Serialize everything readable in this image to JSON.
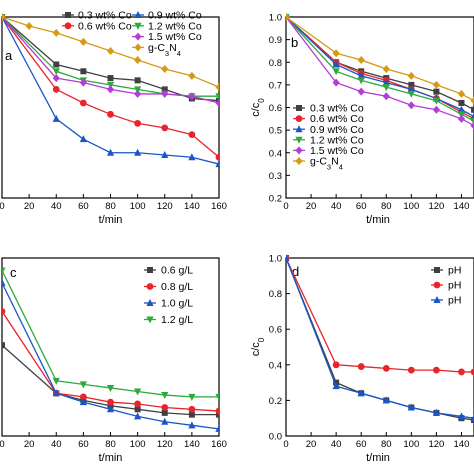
{
  "chart_data": [
    {
      "panel": "a",
      "type": "line",
      "xlabel": "t/min",
      "ylabel": "",
      "x": [
        0,
        20,
        40,
        60,
        80,
        100,
        120,
        140,
        160
      ],
      "x_ticks": [
        "0",
        "20",
        "40",
        "60",
        "80",
        "100",
        "120",
        "140",
        "160"
      ],
      "xlim": [
        0,
        160
      ],
      "ylim": [
        0.2,
        1.0
      ],
      "y_ticks": [],
      "legend_position": "top",
      "series": [
        {
          "name": "0.3 wt% Co",
          "color": "#404040",
          "marker": "square",
          "x": [
            0,
            40,
            60,
            80,
            100,
            120,
            140,
            160
          ],
          "values": [
            1.0,
            0.79,
            0.76,
            0.73,
            0.72,
            0.68,
            0.64,
            0.63
          ]
        },
        {
          "name": "0.6 wt% Co",
          "color": "#e8242c",
          "marker": "circle",
          "x": [
            0,
            40,
            60,
            80,
            100,
            120,
            140,
            160
          ],
          "values": [
            1.0,
            0.68,
            0.62,
            0.57,
            0.53,
            0.51,
            0.48,
            0.38
          ]
        },
        {
          "name": "0.9 wt% Co",
          "color": "#1a56c8",
          "marker": "triangle",
          "x": [
            0,
            40,
            60,
            80,
            100,
            120,
            140,
            160
          ],
          "values": [
            1.0,
            0.55,
            0.46,
            0.4,
            0.4,
            0.39,
            0.38,
            0.35
          ]
        },
        {
          "name": "1.2 wt% Co",
          "color": "#2daa3c",
          "marker": "triangle-down",
          "x": [
            0,
            40,
            60,
            80,
            100,
            120,
            140,
            160
          ],
          "values": [
            1.0,
            0.76,
            0.72,
            0.7,
            0.68,
            0.66,
            0.65,
            0.65
          ]
        },
        {
          "name": "1.5 wt% Co",
          "color": "#b43cd7",
          "marker": "diamond",
          "x": [
            0,
            40,
            60,
            80,
            100,
            120,
            140,
            160
          ],
          "values": [
            1.0,
            0.73,
            0.71,
            0.68,
            0.66,
            0.66,
            0.65,
            0.62
          ]
        },
        {
          "name": "g-C3N4",
          "name_parts": [
            "g-C",
            "3",
            "N",
            "4"
          ],
          "color": "#d49a12",
          "marker": "diamond",
          "x": [
            0,
            20,
            40,
            60,
            80,
            100,
            120,
            140,
            160
          ],
          "values": [
            1.0,
            0.96,
            0.93,
            0.89,
            0.85,
            0.81,
            0.77,
            0.74,
            0.69
          ]
        }
      ]
    },
    {
      "panel": "b",
      "type": "line",
      "xlabel": "t/min",
      "ylabel_parts": [
        "c/c",
        "0"
      ],
      "x": [
        0,
        20,
        40,
        60,
        80,
        100,
        120,
        140
      ],
      "x_ticks": [
        "0",
        "20",
        "40",
        "60",
        "80",
        "100",
        "120",
        "140"
      ],
      "xlim": [
        0,
        150
      ],
      "ylim": [
        0.2,
        1.0
      ],
      "y_ticks": [
        "0.2",
        "0.3",
        "0.4",
        "0.5",
        "0.6",
        "0.7",
        "0.8",
        "0.9",
        "1.0"
      ],
      "legend_position": "bottom-left",
      "series": [
        {
          "name": "0.3 wt% Co",
          "color": "#404040",
          "marker": "square",
          "x": [
            0,
            40,
            60,
            80,
            100,
            120,
            140,
            150
          ],
          "values": [
            1.0,
            0.8,
            0.76,
            0.73,
            0.7,
            0.67,
            0.62,
            0.59
          ]
        },
        {
          "name": "0.6 wt% Co",
          "color": "#e8242c",
          "marker": "circle",
          "x": [
            0,
            40,
            60,
            80,
            100,
            120,
            140,
            150
          ],
          "values": [
            1.0,
            0.8,
            0.75,
            0.72,
            0.68,
            0.64,
            0.58,
            0.55
          ]
        },
        {
          "name": "0.9 wt% Co",
          "color": "#1a56c8",
          "marker": "triangle",
          "x": [
            0,
            40,
            60,
            80,
            100,
            120,
            140,
            150
          ],
          "values": [
            1.0,
            0.79,
            0.74,
            0.71,
            0.68,
            0.64,
            0.59,
            0.56
          ]
        },
        {
          "name": "1.2 wt% Co",
          "color": "#2daa3c",
          "marker": "triangle-down",
          "x": [
            0,
            40,
            60,
            80,
            100,
            120,
            140,
            150
          ],
          "values": [
            1.0,
            0.76,
            0.72,
            0.69,
            0.66,
            0.63,
            0.57,
            0.54
          ]
        },
        {
          "name": "1.5 wt% Co",
          "color": "#b43cd7",
          "marker": "diamond",
          "x": [
            0,
            40,
            60,
            80,
            100,
            120,
            140,
            150
          ],
          "values": [
            1.0,
            0.71,
            0.67,
            0.65,
            0.61,
            0.59,
            0.55,
            0.52
          ]
        },
        {
          "name": "g-C3N4",
          "name_parts": [
            "g-C",
            "3",
            "N",
            "4"
          ],
          "color": "#d49a12",
          "marker": "diamond",
          "x": [
            0,
            40,
            60,
            80,
            100,
            120,
            140,
            150
          ],
          "values": [
            1.0,
            0.84,
            0.81,
            0.77,
            0.74,
            0.7,
            0.66,
            0.63
          ]
        }
      ]
    },
    {
      "panel": "c",
      "type": "line",
      "xlabel": "t/min",
      "ylabel": "",
      "x": [
        0,
        20,
        40,
        60,
        80,
        100,
        120,
        140,
        160
      ],
      "x_ticks": [
        "0",
        "20",
        "40",
        "60",
        "80",
        "100",
        "120",
        "140",
        "160"
      ],
      "xlim": [
        0,
        160
      ],
      "ylim": [
        0.0,
        1.0
      ],
      "y_ticks": [],
      "legend_position": "top-right",
      "series": [
        {
          "name": "0.6 g/L",
          "color": "#404040",
          "marker": "square",
          "x": [
            0,
            40,
            60,
            80,
            100,
            120,
            140,
            160
          ],
          "values": [
            0.51,
            0.24,
            0.2,
            0.17,
            0.15,
            0.13,
            0.12,
            0.12
          ]
        },
        {
          "name": "0.8 g/L",
          "color": "#e8242c",
          "marker": "circle",
          "x": [
            0,
            40,
            60,
            80,
            100,
            120,
            140,
            160
          ],
          "values": [
            0.7,
            0.24,
            0.22,
            0.19,
            0.18,
            0.16,
            0.15,
            0.14
          ]
        },
        {
          "name": "1.0 g/L",
          "color": "#1a56c8",
          "marker": "triangle",
          "x": [
            0,
            40,
            60,
            80,
            100,
            120,
            140,
            160
          ],
          "values": [
            0.86,
            0.24,
            0.19,
            0.15,
            0.11,
            0.08,
            0.06,
            0.04
          ]
        },
        {
          "name": "1.2 g/L",
          "color": "#2daa3c",
          "marker": "triangle-down",
          "x": [
            0,
            40,
            60,
            80,
            100,
            120,
            140,
            160
          ],
          "values": [
            0.93,
            0.31,
            0.29,
            0.27,
            0.25,
            0.23,
            0.22,
            0.22
          ]
        }
      ]
    },
    {
      "panel": "d",
      "type": "line",
      "xlabel": "t/min",
      "ylabel_parts": [
        "c/c",
        "0"
      ],
      "x": [
        0,
        20,
        40,
        60,
        80,
        100,
        120,
        140
      ],
      "x_ticks": [
        "0",
        "20",
        "40",
        "60",
        "80",
        "100",
        "120",
        "140"
      ],
      "xlim": [
        0,
        150
      ],
      "ylim": [
        0.0,
        1.0
      ],
      "y_ticks": [
        "0.0",
        "0.2",
        "0.4",
        "0.6",
        "0.8",
        "1.0"
      ],
      "legend_position": "top-right",
      "series": [
        {
          "name": "pH",
          "color": "#404040",
          "marker": "square",
          "x": [
            0,
            40,
            60,
            80,
            100,
            120,
            140,
            150
          ],
          "values": [
            1.0,
            0.3,
            0.24,
            0.2,
            0.16,
            0.13,
            0.1,
            0.09
          ]
        },
        {
          "name": "pH",
          "color": "#e8242c",
          "marker": "circle",
          "x": [
            0,
            40,
            60,
            80,
            100,
            120,
            140,
            150
          ],
          "values": [
            1.0,
            0.4,
            0.39,
            0.38,
            0.37,
            0.37,
            0.36,
            0.36
          ]
        },
        {
          "name": "pH",
          "color": "#1a56c8",
          "marker": "triangle",
          "x": [
            0,
            40,
            60,
            80,
            100,
            120,
            140,
            150
          ],
          "values": [
            1.0,
            0.28,
            0.24,
            0.2,
            0.16,
            0.13,
            0.11,
            0.1
          ]
        }
      ]
    }
  ]
}
